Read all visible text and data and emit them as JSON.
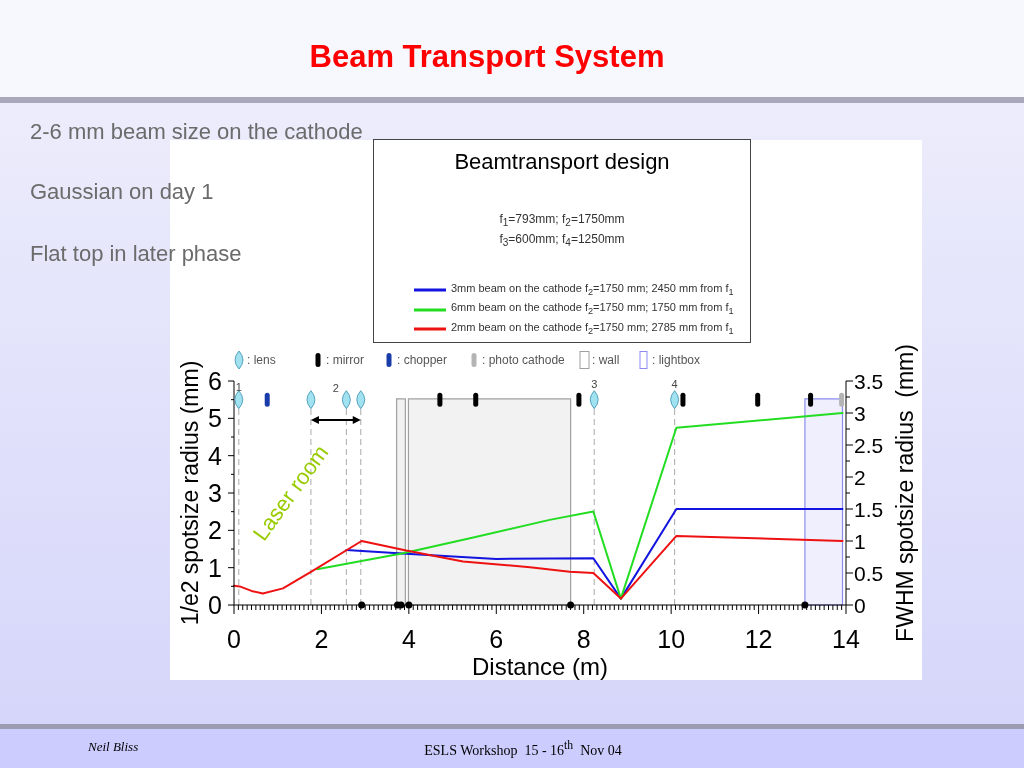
{
  "chart_data": {
    "type": "line",
    "title": "Beam Transport System",
    "subtitle": "Beamtransport design",
    "xlabel": "Distance (m)",
    "ylabel": "1/e2 spotsize radius (mm)",
    "y2label": "FWHM spotsize radius  (mm)",
    "xlim": [
      0,
      14
    ],
    "xticks": [
      0,
      {
        "value": 0.1,
        "label": null
      },
      {
        "value": 0.2,
        "label": null
      },
      {
        "value": 0.3,
        "label": null
      },
      {
        "value": 0.4,
        "label": null
      },
      {
        "value": 0.5,
        "label": null
      },
      {
        "value": 0.6,
        "label": null
      },
      {
        "value": 0.7,
        "label": null
      },
      {
        "value": 0.8,
        "label": null
      },
      {
        "value": 0.9,
        "label": null
      },
      {
        "value": 1,
        "label": null
      },
      {
        "value": 1.1,
        "label": null
      },
      {
        "value": 1.2,
        "label": null
      },
      {
        "value": 1.3,
        "label": null
      },
      {
        "value": 1.4,
        "label": null
      },
      {
        "value": 1.5,
        "label": null
      },
      {
        "value": 1.6,
        "label": null
      },
      {
        "value": 1.7,
        "label": null
      },
      {
        "value": 1.8,
        "label": null
      },
      {
        "value": 1.9,
        "label": null
      },
      2,
      {
        "value": 2.1,
        "label": null
      },
      {
        "value": 2.2,
        "label": null
      },
      {
        "value": 2.3,
        "label": null
      },
      {
        "value": 2.4,
        "label": null
      },
      {
        "value": 2.5,
        "label": null
      },
      {
        "value": 2.6,
        "label": null
      },
      {
        "value": 2.7,
        "label": null
      },
      {
        "value": 2.8,
        "label": null
      },
      {
        "value": 2.9,
        "label": null
      },
      {
        "value": 3,
        "label": null
      },
      {
        "value": 3.1,
        "label": null
      },
      {
        "value": 3.2,
        "label": null
      },
      {
        "value": 3.3,
        "label": null
      },
      {
        "value": 3.4,
        "label": null
      },
      {
        "value": 3.5,
        "label": null
      },
      {
        "value": 3.6,
        "label": null
      },
      {
        "value": 3.7,
        "label": null
      },
      {
        "value": 3.8,
        "label": null
      },
      {
        "value": 3.9,
        "label": null
      },
      4,
      {
        "value": 4.1,
        "label": null
      },
      {
        "value": 4.2,
        "label": null
      },
      {
        "value": 4.3,
        "label": null
      },
      {
        "value": 4.4,
        "label": null
      },
      {
        "value": 4.5,
        "label": null
      },
      {
        "value": 4.6,
        "label": null
      },
      {
        "value": 4.7,
        "label": null
      },
      {
        "value": 4.8,
        "label": null
      },
      {
        "value": 4.9,
        "label": null
      },
      {
        "value": 5,
        "label": null
      },
      {
        "value": 5.1,
        "label": null
      },
      {
        "value": 5.2,
        "label": null
      },
      {
        "value": 5.3,
        "label": null
      },
      {
        "value": 5.4,
        "label": null
      },
      {
        "value": 5.5,
        "label": null
      },
      {
        "value": 5.6,
        "label": null
      },
      {
        "value": 5.7,
        "label": null
      },
      {
        "value": 5.8,
        "label": null
      },
      {
        "value": 5.9,
        "label": null
      },
      6,
      {
        "value": 6.1,
        "label": null
      },
      {
        "value": 6.2,
        "label": null
      },
      {
        "value": 6.3,
        "label": null
      },
      {
        "value": 6.4,
        "label": null
      },
      {
        "value": 6.5,
        "label": null
      },
      {
        "value": 6.6,
        "label": null
      },
      {
        "value": 6.7,
        "label": null
      },
      {
        "value": 6.8,
        "label": null
      },
      {
        "value": 6.9,
        "label": null
      },
      {
        "value": 7,
        "label": null
      },
      {
        "value": 7.1,
        "label": null
      },
      {
        "value": 7.2,
        "label": null
      },
      {
        "value": 7.3,
        "label": null
      },
      {
        "value": 7.4,
        "label": null
      },
      {
        "value": 7.5,
        "label": null
      },
      {
        "value": 7.6,
        "label": null
      },
      {
        "value": 7.7,
        "label": null
      },
      {
        "value": 7.8,
        "label": null
      },
      {
        "value": 7.9,
        "label": null
      },
      8,
      {
        "value": 8.1,
        "label": null
      },
      {
        "value": 8.2,
        "label": null
      },
      {
        "value": 8.3,
        "label": null
      },
      {
        "value": 8.4,
        "label": null
      },
      {
        "value": 8.5,
        "label": null
      },
      {
        "value": 8.6,
        "label": null
      },
      {
        "value": 8.7,
        "label": null
      },
      {
        "value": 8.8,
        "label": null
      },
      {
        "value": 8.9,
        "label": null
      },
      {
        "value": 9,
        "label": null
      },
      {
        "value": 9.1,
        "label": null
      },
      {
        "value": 9.2,
        "label": null
      },
      {
        "value": 9.3,
        "label": null
      },
      {
        "value": 9.4,
        "label": null
      },
      {
        "value": 9.5,
        "label": null
      },
      {
        "value": 9.6,
        "label": null
      },
      {
        "value": 9.7,
        "label": null
      },
      {
        "value": 9.8,
        "label": null
      },
      {
        "value": 9.9,
        "label": null
      },
      10,
      {
        "value": 10.1,
        "label": null
      },
      {
        "value": 10.2,
        "label": null
      },
      {
        "value": 10.3,
        "label": null
      },
      {
        "value": 10.4,
        "label": null
      },
      {
        "value": 10.5,
        "label": null
      },
      {
        "value": 10.6,
        "label": null
      },
      {
        "value": 10.7,
        "label": null
      },
      {
        "value": 10.8,
        "label": null
      },
      {
        "value": 10.9,
        "label": null
      },
      {
        "value": 11,
        "label": null
      },
      {
        "value": 11.1,
        "label": null
      },
      {
        "value": 11.2,
        "label": null
      },
      {
        "value": 11.3,
        "label": null
      },
      {
        "value": 11.4,
        "label": null
      },
      {
        "value": 11.5,
        "label": null
      },
      {
        "value": 11.6,
        "label": null
      },
      {
        "value": 11.7,
        "label": null
      },
      {
        "value": 11.8,
        "label": null
      },
      {
        "value": 11.9,
        "label": null
      },
      12,
      {
        "value": 12.1,
        "label": null
      },
      {
        "value": 12.2,
        "label": null
      },
      {
        "value": 12.3,
        "label": null
      },
      {
        "value": 12.4,
        "label": null
      },
      {
        "value": 12.5,
        "label": null
      },
      {
        "value": 12.6,
        "label": null
      },
      {
        "value": 12.7,
        "label": null
      },
      {
        "value": 12.8,
        "label": null
      },
      {
        "value": 12.9,
        "label": null
      },
      {
        "value": 13,
        "label": null
      },
      {
        "value": 13.1,
        "label": null
      },
      {
        "value": 13.2,
        "label": null
      },
      {
        "value": 13.3,
        "label": null
      },
      {
        "value": 13.4,
        "label": null
      },
      {
        "value": 13.5,
        "label": null
      },
      {
        "value": 13.6,
        "label": null
      },
      {
        "value": 13.7,
        "label": null
      },
      {
        "value": 13.8,
        "label": null
      },
      {
        "value": 13.9,
        "label": null
      },
      14
    ],
    "ylim": [
      0,
      6
    ],
    "yticks": [
      0,
      {
        "value": 0.5,
        "label": null
      },
      1,
      {
        "value": 1.5,
        "label": null
      },
      2,
      {
        "value": 2.5,
        "label": null
      },
      3,
      {
        "value": 3.5,
        "label": null
      },
      4,
      {
        "value": 4.5,
        "label": null
      },
      5,
      {
        "value": 5.5,
        "label": null
      },
      6
    ],
    "y2lim": [
      0,
      3.5
    ],
    "y2ticks": [
      0,
      {
        "value": 0.25,
        "label": null
      },
      0.5,
      {
        "value": 0.75,
        "label": null
      },
      1,
      {
        "value": 1.25,
        "label": null
      },
      1.5,
      {
        "value": 1.75,
        "label": null
      },
      2,
      {
        "value": 2.25,
        "label": null
      },
      2.5,
      {
        "value": 2.75,
        "label": null
      },
      3,
      {
        "value": 3.25,
        "label": null
      },
      3.5
    ],
    "legend": "top",
    "marker": "none",
    "line_style": "solid",
    "series": [
      {
        "name": "3mm beam on the cathode f$_{2}$=1750 mm; 2450 mm from f$_{1}$",
        "color": "#1414e0",
        "axis": "y2",
        "x": [
          2.57,
          3.94,
          6.0,
          8.22,
          8.85,
          10.12,
          13.92
        ],
        "values": [
          0.86,
          0.8,
          0.72,
          0.73,
          0.1,
          1.5,
          1.5
        ]
      },
      {
        "name": "6mm beam on the cathode f$_{2}$=1750 mm; 1750 mm from f$_{1}$",
        "color": "#22dd22",
        "axis": "y2",
        "x": [
          1.9,
          3.87,
          5.5,
          7.22,
          8.22,
          8.85,
          10.12,
          13.92
        ],
        "values": [
          0.56,
          0.81,
          1.06,
          1.33,
          1.46,
          0.1,
          2.77,
          3.0
        ]
      },
      {
        "name": "2mm beam on the cathode f$_{2}$=1750 mm; 2785 mm from f$_{1}$",
        "color": "#ee1111",
        "axis": "y2",
        "x": [
          0,
          0.13,
          0.4,
          0.66,
          1.12,
          1.77,
          2.92,
          3.94,
          5.24,
          6.77,
          7.68,
          8.22,
          8.85,
          10.12,
          13.92
        ],
        "values": [
          0.3,
          0.29,
          0.22,
          0.18,
          0.26,
          0.52,
          1.0,
          0.85,
          0.68,
          0.59,
          0.52,
          0.5,
          0.1,
          1.08,
          1.0
        ]
      },
      {
        "name": ": lens",
        "type": "scatter",
        "marker": "diamond",
        "color": "#a0e2f0",
        "x": [
          0.11,
          1.76,
          2.57,
          2.9,
          8.24,
          10.08
        ],
        "values": [
          5.5,
          5.5,
          5.5,
          5.5,
          5.5,
          5.5
        ]
      },
      {
        "name": ": mirror",
        "type": "scatter",
        "marker": "square",
        "color": "#000000",
        "x": [
          4.71,
          5.53,
          7.89,
          10.27,
          11.98,
          13.19
        ],
        "values": [
          5.5,
          5.5,
          5.5,
          5.5,
          5.5,
          5.5
        ]
      },
      {
        "name": ": chopper",
        "type": "scatter",
        "marker": "square",
        "color": "#1a3caa",
        "x": [
          0.76
        ],
        "values": [
          5.5
        ]
      },
      {
        "name": ": photo cathode",
        "type": "scatter",
        "marker": "square",
        "color": "#b4b4b4",
        "x": [
          13.9
        ],
        "values": [
          5.5
        ]
      },
      {
        "type": "scatter",
        "marker": "circle",
        "color": "#000000",
        "x": [
          2.92,
          3.74,
          3.82,
          4.0,
          7.7,
          13.06
        ],
        "values": [
          0,
          0,
          0,
          0,
          0,
          0
        ]
      }
    ],
    "ref_lines": [
      {
        "axis": "x",
        "value": 0.11,
        "color": "#aaaaaa",
        "line_style": "dashed"
      },
      {
        "axis": "x",
        "value": 1.76,
        "color": "#aaaaaa",
        "line_style": "dashed"
      },
      {
        "axis": "x",
        "value": 2.57,
        "color": "#aaaaaa",
        "line_style": "dashed"
      },
      {
        "axis": "x",
        "value": 2.9,
        "color": "#aaaaaa",
        "line_style": "dashed"
      },
      {
        "axis": "x",
        "value": 8.24,
        "color": "#aaaaaa",
        "line_style": "dashed"
      },
      {
        "axis": "x",
        "value": 10.08,
        "color": "#aaaaaa",
        "line_style": "dashed"
      }
    ],
    "bands": [
      {
        "axis": "x",
        "from": 3.72,
        "to": 3.92,
        "color": "#a0a0a0"
      },
      {
        "axis": "x",
        "from": 3.99,
        "to": 7.7,
        "color": "#a0a0a0"
      },
      {
        "axis": "x",
        "from": 13.06,
        "to": 13.92,
        "color": "#8c8cf0"
      }
    ],
    "annotations": [
      "2-6 mm beam size on the cathode",
      "Gaussian on day 1",
      "Flat top in later phase",
      "f$_{1}$=793mm; f$_{2}$=1750mm",
      "f$_{3}$=600mm; f$_{4}$=1250mm",
      "Laser room",
      ": wall",
      ": lightbox",
      "Neil Bliss",
      "ESLS Workshop  15 - 16$^{th}$  Nov 04",
      "1",
      "2",
      "3",
      "4"
    ]
  }
}
